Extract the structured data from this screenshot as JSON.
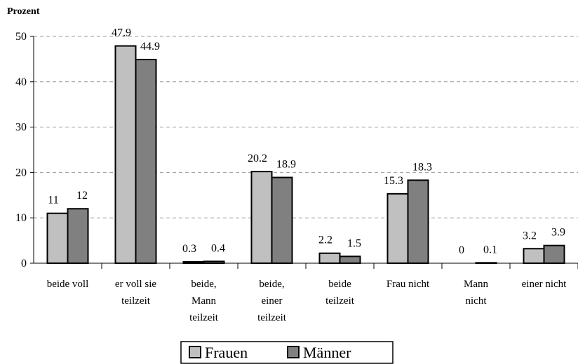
{
  "chart_data": {
    "type": "bar",
    "y_label": "Prozent",
    "categories": [
      "beide voll",
      "er voll sie\nteilzeit",
      "beide,\nMann\nteilzeit",
      "beide,\neiner\nteilzeit",
      "beide\nteilzeit",
      "Frau nicht",
      "Mann\nnicht",
      "einer nicht"
    ],
    "series": [
      {
        "name": "Frauen",
        "color": "#c0c0c0",
        "values": [
          11,
          47.9,
          0.3,
          20.2,
          2.2,
          15.3,
          0,
          3.2
        ]
      },
      {
        "name": "Männer",
        "color": "#808080",
        "values": [
          12,
          44.9,
          0.4,
          18.9,
          1.5,
          18.3,
          0.1,
          3.9
        ]
      }
    ],
    "ylim": [
      0,
      50
    ],
    "yticks": [
      0,
      10,
      20,
      30,
      40,
      50
    ],
    "grid": true,
    "legend": "bottom"
  }
}
